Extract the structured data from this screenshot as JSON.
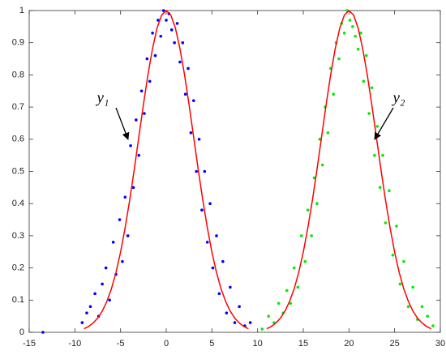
{
  "chart_data": {
    "type": "scatter",
    "xlim": [
      -15,
      30
    ],
    "xticks": [
      -15,
      -10,
      -5,
      0,
      5,
      10,
      15,
      20,
      25,
      30
    ],
    "ylim": [
      0,
      1
    ],
    "yticks": [
      0,
      0.1,
      0.2,
      0.3,
      0.4,
      0.5,
      0.6,
      0.7,
      0.8,
      0.9,
      1
    ],
    "annotations": [
      "y₁",
      "y₂"
    ],
    "series": [
      {
        "type": "scatter",
        "color": "#0000ff",
        "x": [
          -13.5,
          -9.2,
          -8.7,
          -8.3,
          -7.8,
          -7.4,
          -7.0,
          -6.6,
          -6.2,
          -5.8,
          -5.5,
          -5.1,
          -4.8,
          -4.5,
          -4.2,
          -3.9,
          -3.6,
          -3.3,
          -3.0,
          -2.7,
          -2.4,
          -2.1,
          -1.8,
          -1.5,
          -1.2,
          -0.9,
          -0.6,
          -0.3,
          0,
          0.3,
          0.6,
          0.9,
          1.2,
          1.5,
          1.8,
          2.1,
          2.4,
          2.7,
          3.0,
          3.3,
          3.6,
          3.9,
          4.2,
          4.5,
          4.8,
          5.1,
          5.5,
          5.8,
          6.2,
          6.6,
          7.0,
          7.5,
          8.0,
          8.6,
          9.2
        ],
        "values": [
          0,
          0.03,
          0.06,
          0.08,
          0.12,
          0.05,
          0.15,
          0.2,
          0.1,
          0.28,
          0.18,
          0.35,
          0.22,
          0.42,
          0.3,
          0.58,
          0.45,
          0.66,
          0.55,
          0.75,
          0.68,
          0.85,
          0.78,
          0.93,
          0.86,
          0.97,
          0.92,
          1.0,
          0.97,
          0.99,
          0.94,
          0.9,
          0.96,
          0.84,
          0.9,
          0.74,
          0.82,
          0.62,
          0.72,
          0.5,
          0.6,
          0.38,
          0.5,
          0.28,
          0.4,
          0.2,
          0.3,
          0.12,
          0.22,
          0.06,
          0.14,
          0.03,
          0.08,
          0.02,
          0.03
        ]
      },
      {
        "type": "scatter",
        "color": "#00ee00",
        "x": [
          10.5,
          11.2,
          11.8,
          12.3,
          12.8,
          13.2,
          13.6,
          14.0,
          14.4,
          14.8,
          15.2,
          15.5,
          15.9,
          16.2,
          16.5,
          16.8,
          17.1,
          17.4,
          17.7,
          18.0,
          18.3,
          18.6,
          18.9,
          19.2,
          19.5,
          19.8,
          20.1,
          20.4,
          20.7,
          21.0,
          21.3,
          21.6,
          21.9,
          22.2,
          22.5,
          22.8,
          23.1,
          23.4,
          23.7,
          24.0,
          24.4,
          24.8,
          25.2,
          25.6,
          26.0,
          26.5,
          27.0,
          27.5,
          28.0,
          28.6,
          29.2
        ],
        "values": [
          0.01,
          0.05,
          0.03,
          0.09,
          0.06,
          0.13,
          0.09,
          0.2,
          0.14,
          0.3,
          0.22,
          0.38,
          0.3,
          0.48,
          0.4,
          0.6,
          0.52,
          0.7,
          0.62,
          0.82,
          0.74,
          0.9,
          0.85,
          0.96,
          0.93,
          1.0,
          0.97,
          0.95,
          0.92,
          0.88,
          0.93,
          0.78,
          0.86,
          0.68,
          0.76,
          0.55,
          0.64,
          0.45,
          0.55,
          0.34,
          0.44,
          0.24,
          0.33,
          0.15,
          0.22,
          0.08,
          0.14,
          0.04,
          0.08,
          0.05,
          0.02
        ]
      },
      {
        "type": "line",
        "color": "#ff0000",
        "x": [
          -9,
          -8.5,
          -8,
          -7.5,
          -7,
          -6.5,
          -6,
          -5.5,
          -5,
          -4.5,
          -4,
          -3.5,
          -3,
          -2.5,
          -2,
          -1.5,
          -1,
          -0.5,
          0,
          0.5,
          1,
          1.5,
          2,
          2.5,
          3,
          3.5,
          4,
          4.5,
          5,
          5.5,
          6,
          6.5,
          7,
          7.5,
          8,
          8.5,
          9
        ],
        "values": [
          0.011,
          0.018,
          0.029,
          0.044,
          0.066,
          0.096,
          0.135,
          0.186,
          0.249,
          0.325,
          0.411,
          0.506,
          0.607,
          0.707,
          0.801,
          0.882,
          0.946,
          0.986,
          1,
          0.986,
          0.946,
          0.882,
          0.801,
          0.707,
          0.607,
          0.506,
          0.411,
          0.325,
          0.249,
          0.186,
          0.135,
          0.096,
          0.066,
          0.044,
          0.029,
          0.018,
          0.011
        ]
      },
      {
        "type": "line",
        "color": "#ff0000",
        "x": [
          11,
          11.5,
          12,
          12.5,
          13,
          13.5,
          14,
          14.5,
          15,
          15.5,
          16,
          16.5,
          17,
          17.5,
          18,
          18.5,
          19,
          19.5,
          20,
          20.5,
          21,
          21.5,
          22,
          22.5,
          23,
          23.5,
          24,
          24.5,
          25,
          25.5,
          26,
          26.5,
          27,
          27.5,
          28,
          28.5,
          29
        ],
        "values": [
          0.011,
          0.018,
          0.029,
          0.044,
          0.066,
          0.096,
          0.135,
          0.186,
          0.249,
          0.325,
          0.411,
          0.506,
          0.607,
          0.707,
          0.801,
          0.882,
          0.946,
          0.986,
          1,
          0.986,
          0.946,
          0.882,
          0.801,
          0.707,
          0.607,
          0.506,
          0.411,
          0.325,
          0.249,
          0.186,
          0.135,
          0.096,
          0.066,
          0.044,
          0.029,
          0.018,
          0.011
        ]
      }
    ]
  }
}
